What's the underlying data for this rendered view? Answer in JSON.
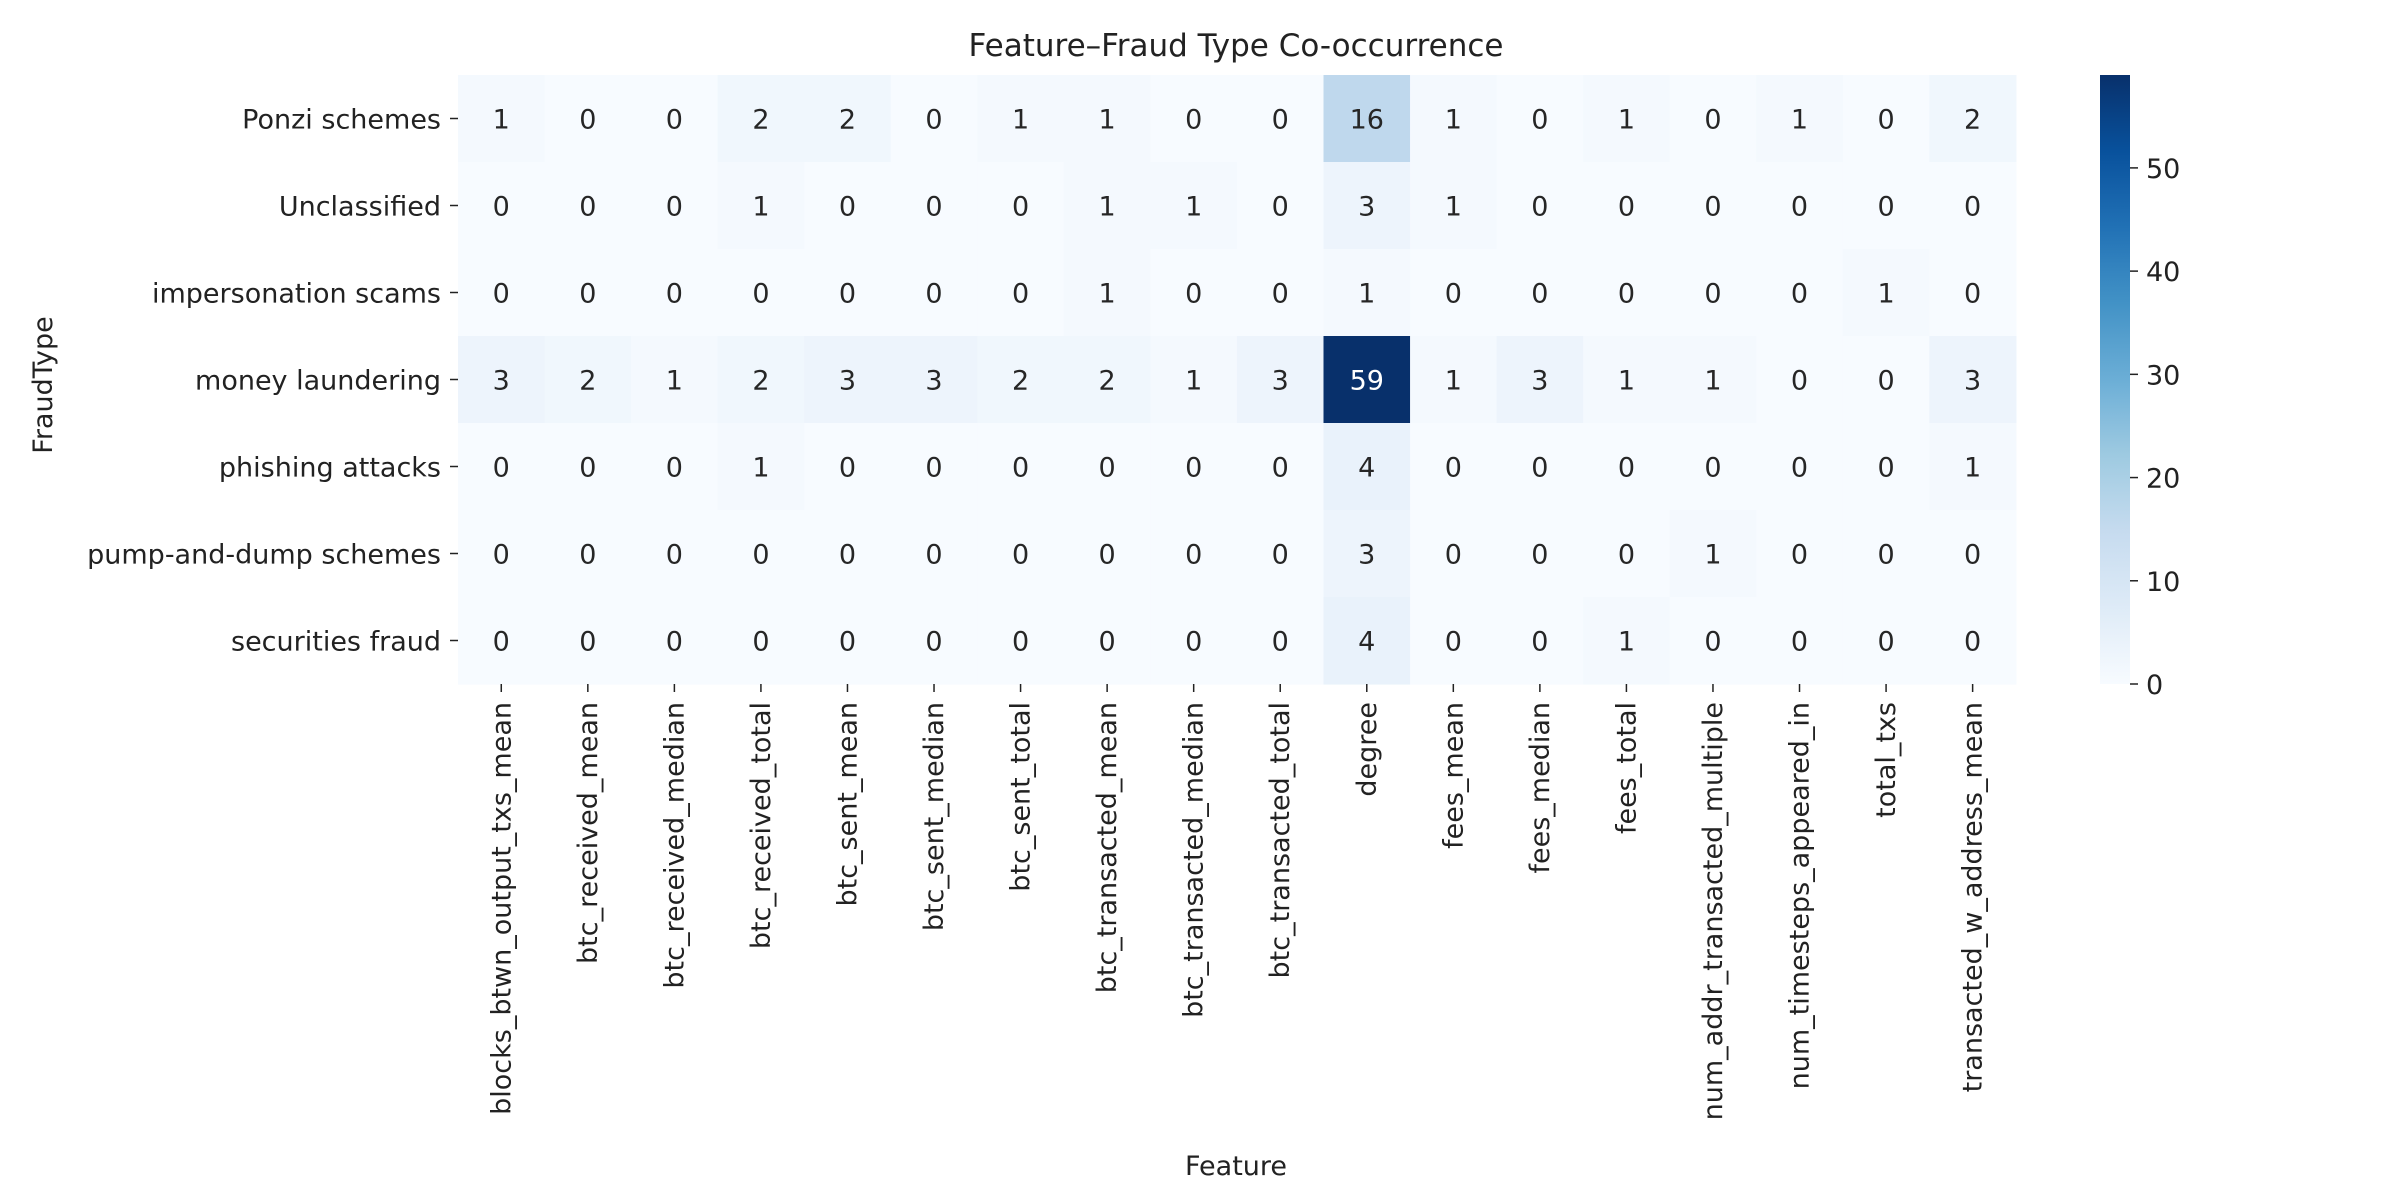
{
  "chart_data": {
    "type": "heatmap",
    "title": "Feature–Fraud Type Co-occurrence",
    "xlabel": "Feature",
    "ylabel": "FraudType",
    "columns": [
      "blocks_btwn_output_txs_mean",
      "btc_received_mean",
      "btc_received_median",
      "btc_received_total",
      "btc_sent_mean",
      "btc_sent_median",
      "btc_sent_total",
      "btc_transacted_mean",
      "btc_transacted_median",
      "btc_transacted_total",
      "degree",
      "fees_mean",
      "fees_median",
      "fees_total",
      "num_addr_transacted_multiple",
      "num_timesteps_appeared_in",
      "total_txs",
      "transacted_w_address_mean"
    ],
    "rows": [
      "Ponzi schemes",
      "Unclassified",
      "impersonation scams",
      "money laundering",
      "phishing attacks",
      "pump-and-dump schemes",
      "securities fraud"
    ],
    "values": [
      [
        1,
        0,
        0,
        2,
        2,
        0,
        1,
        1,
        0,
        0,
        16,
        1,
        0,
        1,
        0,
        1,
        0,
        2
      ],
      [
        0,
        0,
        0,
        1,
        0,
        0,
        0,
        1,
        1,
        0,
        3,
        1,
        0,
        0,
        0,
        0,
        0,
        0
      ],
      [
        0,
        0,
        0,
        0,
        0,
        0,
        0,
        1,
        0,
        0,
        1,
        0,
        0,
        0,
        0,
        0,
        1,
        0
      ],
      [
        3,
        2,
        1,
        2,
        3,
        3,
        2,
        2,
        1,
        3,
        59,
        1,
        3,
        1,
        1,
        0,
        0,
        3
      ],
      [
        0,
        0,
        0,
        1,
        0,
        0,
        0,
        0,
        0,
        0,
        4,
        0,
        0,
        0,
        0,
        0,
        0,
        1
      ],
      [
        0,
        0,
        0,
        0,
        0,
        0,
        0,
        0,
        0,
        0,
        3,
        0,
        0,
        0,
        1,
        0,
        0,
        0
      ],
      [
        0,
        0,
        0,
        0,
        0,
        0,
        0,
        0,
        0,
        0,
        4,
        0,
        0,
        1,
        0,
        0,
        0,
        0
      ]
    ],
    "colorbar": {
      "min": 0,
      "max": 59,
      "ticks": [
        0,
        10,
        20,
        30,
        40,
        50
      ],
      "colormap": "Blues",
      "low_color": "#f7fbff",
      "high_color": "#08306b"
    }
  }
}
